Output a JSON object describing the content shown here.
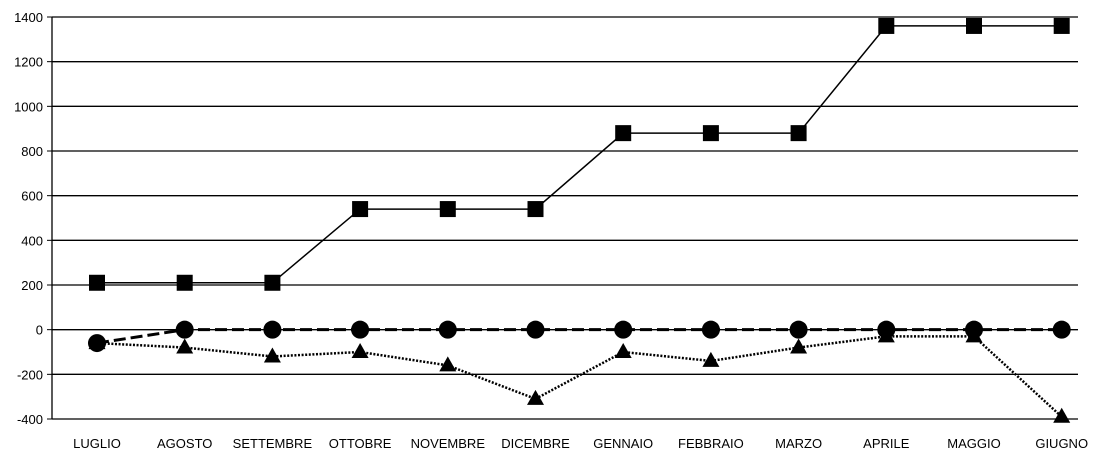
{
  "chart_data": {
    "type": "line",
    "categories": [
      "LUGLIO",
      "AGOSTO",
      "SETTEMBRE",
      "OTTOBRE",
      "NOVEMBRE",
      "DICEMBRE",
      "GENNAIO",
      "FEBBRAIO",
      "MARZO",
      "APRILE",
      "MAGGIO",
      "GIUGNO"
    ],
    "series": [
      {
        "marker": "square",
        "line_style": "solid",
        "values": [
          210,
          210,
          210,
          540,
          540,
          540,
          880,
          880,
          880,
          1360,
          1360,
          1360
        ]
      },
      {
        "marker": "circle",
        "line_style": "dashed",
        "values": [
          -60,
          0,
          0,
          0,
          0,
          0,
          0,
          0,
          0,
          0,
          0,
          0
        ]
      },
      {
        "marker": "triangle",
        "line_style": "dotted",
        "values": [
          -60,
          -80,
          -120,
          -100,
          -160,
          -310,
          -100,
          -140,
          -80,
          -30,
          -30,
          -390
        ]
      }
    ],
    "ylim": [
      -400,
      1400
    ],
    "yticks": [
      1400,
      1200,
      1000,
      800,
      600,
      400,
      200,
      0,
      -200,
      -400
    ],
    "grid": true,
    "legend": false,
    "color": "#000000"
  }
}
